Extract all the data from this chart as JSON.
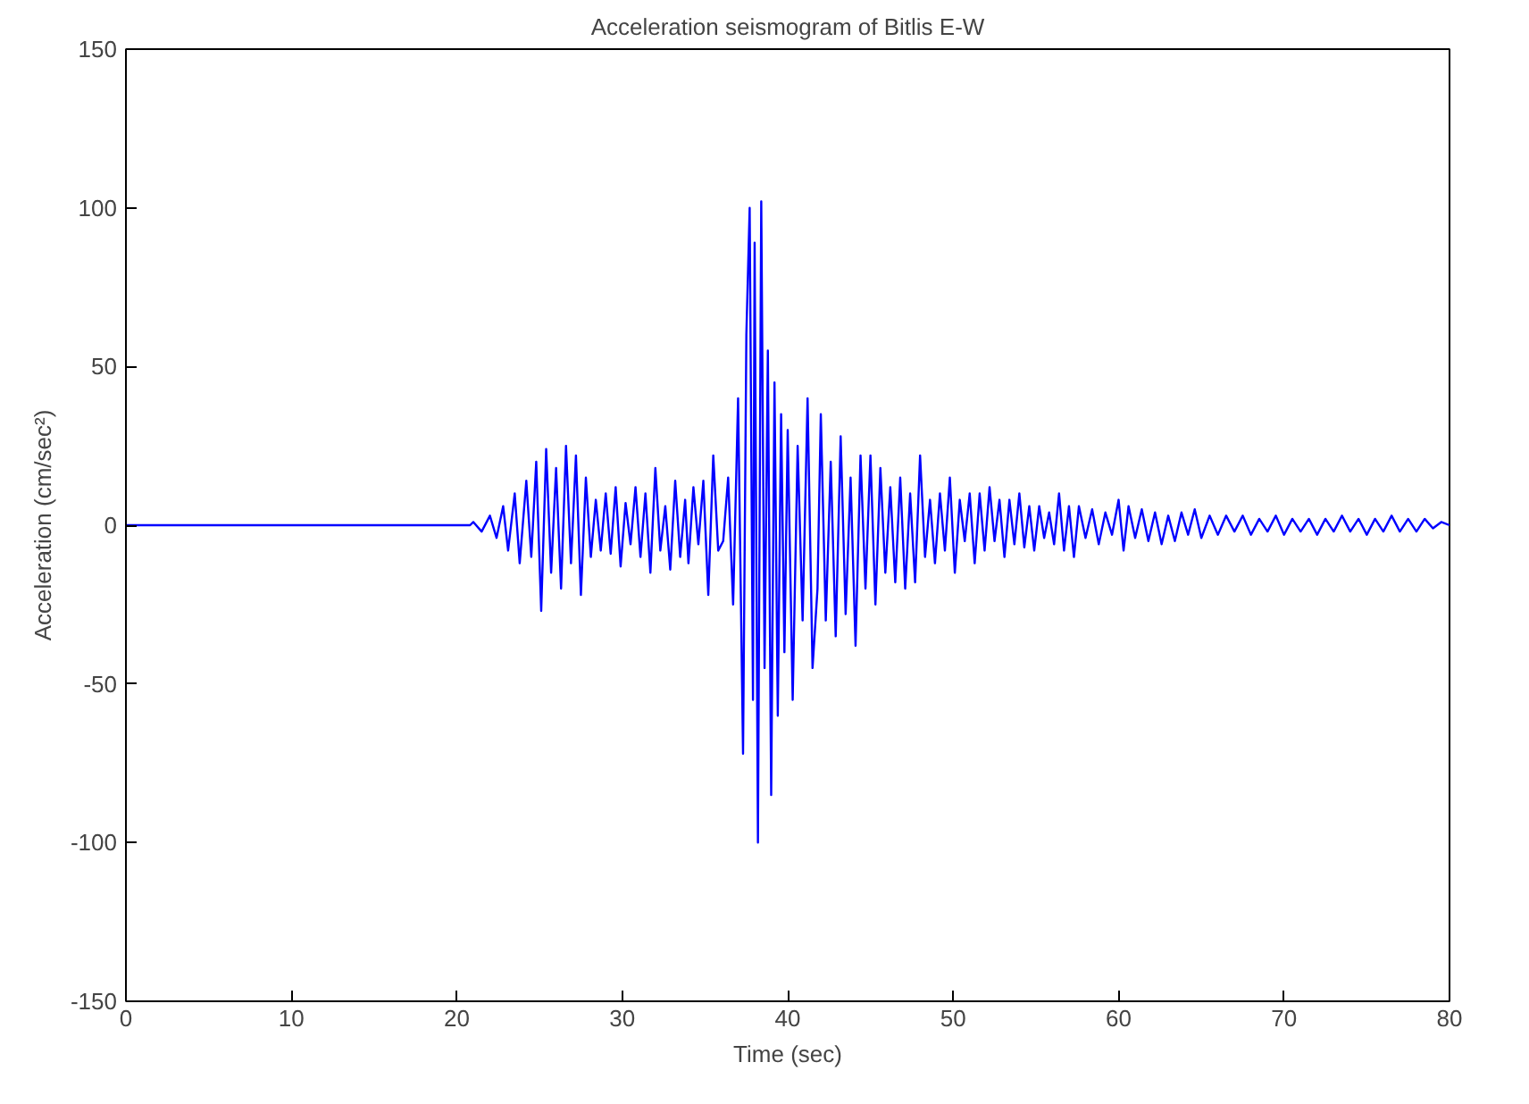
{
  "chart_data": {
    "type": "line",
    "title": "Acceleration seismogram of Bitlis E-W",
    "xlabel": "Time (sec)",
    "ylabel": "Acceleration (cm/sec²)",
    "xlim": [
      0,
      80
    ],
    "ylim": [
      -150,
      150
    ],
    "xticks": [
      0,
      10,
      20,
      30,
      40,
      50,
      60,
      70,
      80
    ],
    "yticks": [
      -150,
      -100,
      -50,
      0,
      50,
      100,
      150
    ],
    "grid": false,
    "marker": "none",
    "line_style": "solid",
    "series": [
      {
        "color": "#0000ff",
        "x": [
          0,
          20.8,
          21.0,
          21.5,
          22.0,
          22.4,
          22.8,
          23.1,
          23.5,
          23.8,
          24.2,
          24.5,
          24.8,
          25.1,
          25.4,
          25.7,
          26.0,
          26.3,
          26.6,
          26.9,
          27.2,
          27.5,
          27.8,
          28.1,
          28.4,
          28.7,
          29.0,
          29.3,
          29.6,
          29.9,
          30.2,
          30.5,
          30.8,
          31.1,
          31.4,
          31.7,
          32.0,
          32.3,
          32.6,
          32.9,
          33.2,
          33.5,
          33.8,
          34.0,
          34.3,
          34.6,
          34.9,
          35.2,
          35.5,
          35.8,
          36.1,
          36.4,
          36.7,
          37.0,
          37.3,
          37.5,
          37.7,
          37.9,
          38.0,
          38.2,
          38.4,
          38.6,
          38.8,
          39.0,
          39.2,
          39.4,
          39.6,
          39.8,
          40.0,
          40.3,
          40.6,
          40.9,
          41.2,
          41.5,
          41.8,
          42.0,
          42.3,
          42.6,
          42.9,
          43.2,
          43.5,
          43.8,
          44.1,
          44.4,
          44.7,
          45.0,
          45.3,
          45.6,
          45.9,
          46.2,
          46.5,
          46.8,
          47.1,
          47.4,
          47.7,
          48.0,
          48.3,
          48.6,
          48.9,
          49.2,
          49.5,
          49.8,
          50.1,
          50.4,
          50.7,
          51.0,
          51.3,
          51.6,
          51.9,
          52.2,
          52.5,
          52.8,
          53.1,
          53.4,
          53.7,
          54.0,
          54.3,
          54.6,
          54.9,
          55.2,
          55.5,
          55.8,
          56.1,
          56.4,
          56.7,
          57.0,
          57.3,
          57.6,
          58.0,
          58.4,
          58.8,
          59.2,
          59.6,
          60.0,
          60.3,
          60.6,
          61.0,
          61.4,
          61.8,
          62.2,
          62.6,
          63.0,
          63.4,
          63.8,
          64.2,
          64.6,
          65.0,
          65.5,
          66.0,
          66.5,
          67.0,
          67.5,
          68.0,
          68.5,
          69.0,
          69.5,
          70.0,
          70.5,
          71.0,
          71.5,
          72.0,
          72.5,
          73.0,
          73.5,
          74.0,
          74.5,
          75.0,
          75.5,
          76.0,
          76.5,
          77.0,
          77.5,
          78.0,
          78.5,
          79.0,
          79.5,
          80.0
        ],
        "values": [
          0,
          0,
          1,
          -2,
          3,
          -4,
          6,
          -8,
          10,
          -12,
          14,
          -10,
          20,
          -27,
          24,
          -15,
          18,
          -20,
          25,
          -12,
          22,
          -22,
          15,
          -10,
          8,
          -8,
          10,
          -9,
          12,
          -13,
          7,
          -6,
          12,
          -10,
          10,
          -15,
          18,
          -8,
          6,
          -14,
          14,
          -10,
          8,
          -12,
          12,
          -6,
          14,
          -22,
          22,
          -8,
          -5,
          15,
          -25,
          40,
          -72,
          60,
          100,
          -55,
          89,
          -100,
          102,
          -45,
          55,
          -85,
          45,
          -60,
          35,
          -40,
          30,
          -55,
          25,
          -30,
          40,
          -45,
          -20,
          35,
          -30,
          20,
          -35,
          28,
          -28,
          15,
          -38,
          22,
          -20,
          22,
          -25,
          18,
          -15,
          12,
          -18,
          15,
          -20,
          10,
          -18,
          22,
          -10,
          8,
          -12,
          10,
          -8,
          15,
          -15,
          8,
          -5,
          10,
          -12,
          10,
          -8,
          12,
          -5,
          8,
          -10,
          8,
          -6,
          10,
          -7,
          6,
          -8,
          6,
          -4,
          4,
          -6,
          10,
          -8,
          6,
          -10,
          6,
          -4,
          5,
          -6,
          4,
          -3,
          8,
          -8,
          6,
          -4,
          5,
          -5,
          4,
          -6,
          3,
          -5,
          4,
          -3,
          5,
          -4,
          3,
          -3,
          3,
          -2,
          3,
          -3,
          2,
          -2,
          3,
          -3,
          2,
          -2,
          2,
          -3,
          2,
          -2,
          3,
          -2,
          2,
          -3,
          2,
          -2,
          3,
          -2,
          2,
          -2,
          2,
          -1,
          1,
          0
        ]
      }
    ]
  }
}
